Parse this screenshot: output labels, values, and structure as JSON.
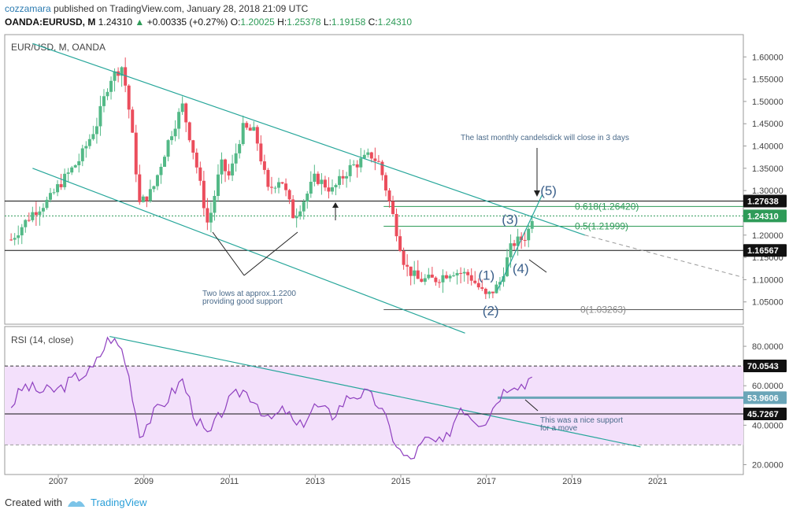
{
  "header": {
    "author": "cozzamara",
    "published": "published on TradingView.com, January 28, 2018 21:09 UTC",
    "symbol": "OANDA:EURUSD, M",
    "last": "1.24310",
    "change_arrow": "▲",
    "change": "+0.00335 (+0.27%)",
    "o_label": "O:",
    "o_value": "1.20025",
    "h_label": "H:",
    "h_value": "1.25378",
    "l_label": "L:",
    "l_value": "1.19158",
    "c_label": "C:",
    "c_value": "1.24310"
  },
  "footer": {
    "created_with": "Created with",
    "brand": "TradingView"
  },
  "chart_data": [
    {
      "type": "candlestick",
      "title": "EUR/USD, M, OANDA",
      "ylim": [
        1.0,
        1.65
      ],
      "y_ticks": [
        "1.05000",
        "1.10000",
        "1.15000",
        "1.20000",
        "1.25000",
        "1.30000",
        "1.35000",
        "1.40000",
        "1.45000",
        "1.50000",
        "1.55000",
        "1.60000"
      ],
      "x_ticks": [
        "2007",
        "2009",
        "2011",
        "2013",
        "2015",
        "2017",
        "2019",
        "2021"
      ],
      "x_tick_years": [
        2007,
        2009,
        2011,
        2013,
        2015,
        2017,
        2019,
        2021
      ],
      "xlim": [
        2005.75,
        2023.0
      ],
      "price_path": [
        [
          2005.9,
          1.19
        ],
        [
          2006.4,
          1.25
        ],
        [
          2006.8,
          1.28
        ],
        [
          2007.0,
          1.31
        ],
        [
          2007.5,
          1.37
        ],
        [
          2007.9,
          1.45
        ],
        [
          2008.2,
          1.55
        ],
        [
          2008.5,
          1.58
        ],
        [
          2008.7,
          1.45
        ],
        [
          2008.9,
          1.27
        ],
        [
          2009.2,
          1.3
        ],
        [
          2009.6,
          1.42
        ],
        [
          2009.9,
          1.49
        ],
        [
          2010.2,
          1.37
        ],
        [
          2010.5,
          1.22
        ],
        [
          2010.8,
          1.36
        ],
        [
          2011.0,
          1.33
        ],
        [
          2011.3,
          1.44
        ],
        [
          2011.6,
          1.43
        ],
        [
          2011.9,
          1.3
        ],
        [
          2012.2,
          1.33
        ],
        [
          2012.5,
          1.24
        ],
        [
          2012.8,
          1.29
        ],
        [
          2013.0,
          1.33
        ],
        [
          2013.4,
          1.3
        ],
        [
          2013.8,
          1.35
        ],
        [
          2014.3,
          1.38
        ],
        [
          2014.5,
          1.36
        ],
        [
          2014.8,
          1.25
        ],
        [
          2015.1,
          1.13
        ],
        [
          2015.4,
          1.1
        ],
        [
          2015.8,
          1.1
        ],
        [
          2016.2,
          1.12
        ],
        [
          2016.6,
          1.11
        ],
        [
          2017.0,
          1.06
        ],
        [
          2017.3,
          1.09
        ],
        [
          2017.6,
          1.18
        ],
        [
          2017.8,
          1.19
        ],
        [
          2017.95,
          1.2
        ],
        [
          2018.07,
          1.243
        ]
      ],
      "horizontal_lines": [
        {
          "price": 1.27638,
          "label": "1.27638",
          "color": "#111111"
        },
        {
          "price": 1.2431,
          "label": "1.24310",
          "color": "#2e9b58"
        },
        {
          "price": 1.16567,
          "label": "1.16567",
          "color": "#111111"
        }
      ],
      "fibonacci": [
        {
          "label": "0.618(1.26420)",
          "price": 1.2642
        },
        {
          "label": "0.5(1.21999)",
          "price": 1.21999
        },
        {
          "label": "0(1.03263)",
          "price": 1.03263
        }
      ],
      "trendlines": [
        {
          "from": [
            2006.4,
            1.63
          ],
          "to": [
            2019.3,
            1.2
          ],
          "extend_to": [
            2023.0,
            1.105
          ]
        },
        {
          "from": [
            2006.4,
            1.35
          ],
          "to": [
            2016.5,
            0.98
          ]
        },
        {
          "from": [
            2017.25,
            1.075
          ],
          "to": [
            2018.3,
            1.29
          ]
        }
      ],
      "wave_labels": [
        {
          "text": "(1)",
          "x": 2017.0,
          "y": 1.1
        },
        {
          "text": "(2)",
          "x": 2017.1,
          "y": 1.02
        },
        {
          "text": "(3)",
          "x": 2017.55,
          "y": 1.225
        },
        {
          "text": "(4)",
          "x": 2017.8,
          "y": 1.115
        },
        {
          "text": "(5)",
          "x": 2018.45,
          "y": 1.29
        }
      ],
      "annotations": [
        {
          "text": "The last monthly candelsdick will close in 3 days"
        },
        {
          "text": "Two lows at approx.1.2200"
        },
        {
          "text": "providing good support"
        }
      ]
    },
    {
      "type": "line",
      "title": "RSI (14, close)",
      "ylim": [
        15,
        90
      ],
      "y_ticks": [
        "20.0000",
        "40.0000",
        "60.0000",
        "80.0000"
      ],
      "x": [
        2005.9,
        2006.2,
        2006.6,
        2007.0,
        2007.4,
        2007.8,
        2008.2,
        2008.5,
        2008.7,
        2008.9,
        2009.2,
        2009.5,
        2009.9,
        2010.2,
        2010.5,
        2010.9,
        2011.3,
        2011.6,
        2011.9,
        2012.3,
        2012.6,
        2013.0,
        2013.4,
        2013.8,
        2014.2,
        2014.5,
        2014.8,
        2015.0,
        2015.2,
        2015.6,
        2016.0,
        2016.4,
        2016.8,
        2017.0,
        2017.3,
        2017.6,
        2017.9,
        2018.07
      ],
      "values": [
        50,
        60,
        57,
        58,
        64,
        68,
        85,
        78,
        60,
        35,
        45,
        52,
        63,
        44,
        34,
        50,
        58,
        53,
        42,
        48,
        38,
        50,
        45,
        55,
        56,
        50,
        35,
        26,
        22,
        33,
        30,
        50,
        42,
        43,
        55,
        62,
        60,
        68
      ],
      "overbought": 70,
      "oversold": 30,
      "levels": [
        {
          "value": 70.0543,
          "label": "70.0543"
        },
        {
          "value": 53.9606,
          "label": "53.9606"
        },
        {
          "value": 45.7267,
          "label": "45.7267"
        }
      ],
      "annotations": [
        {
          "text": "This was a nice support"
        },
        {
          "text": "for a move"
        }
      ]
    }
  ]
}
